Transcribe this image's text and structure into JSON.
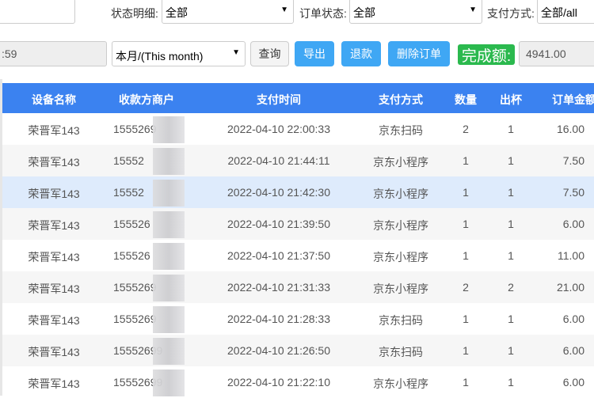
{
  "filters": {
    "status_detail_label": "状态明细:",
    "status_detail_value": "全部",
    "order_status_label": "订单状态:",
    "order_status_value": "全部",
    "pay_method_label": "支付方式:",
    "pay_method_value": "全部/all",
    "end_time_value": ":59",
    "period_value": "本月/(This month)"
  },
  "toolbar": {
    "query": "查询",
    "export": "导出",
    "refund": "退款",
    "delete_order": "删除订单",
    "completed_label": "完成额:",
    "completed_value": "4941.00"
  },
  "table": {
    "headers": [
      "设备名称",
      "收款方商户",
      "支付时间",
      "支付方式",
      "数量",
      "出杯",
      "订单金额"
    ],
    "rows": [
      {
        "device": "荣晋军143",
        "merchant": "1555269",
        "time": "2022-04-10 22:00:33",
        "method": "京东扫码",
        "qty": "2",
        "cups": "1",
        "amount": "16.00"
      },
      {
        "device": "荣晋军143",
        "merchant": "15552",
        "time": "2022-04-10 21:44:11",
        "method": "京东小程序",
        "qty": "1",
        "cups": "1",
        "amount": "7.50"
      },
      {
        "device": "荣晋军143",
        "merchant": "15552",
        "time": "2022-04-10 21:42:30",
        "method": "京东小程序",
        "qty": "1",
        "cups": "1",
        "amount": "7.50"
      },
      {
        "device": "荣晋军143",
        "merchant": "155526",
        "time": "2022-04-10 21:39:50",
        "method": "京东小程序",
        "qty": "1",
        "cups": "1",
        "amount": "6.00"
      },
      {
        "device": "荣晋军143",
        "merchant": "155526",
        "time": "2022-04-10 21:37:50",
        "method": "京东小程序",
        "qty": "1",
        "cups": "1",
        "amount": "11.00"
      },
      {
        "device": "荣晋军143",
        "merchant": "1555269",
        "time": "2022-04-10 21:31:33",
        "method": "京东小程序",
        "qty": "2",
        "cups": "2",
        "amount": "21.00"
      },
      {
        "device": "荣晋军143",
        "merchant": "1555269",
        "time": "2022-04-10 21:28:33",
        "method": "京东扫码",
        "qty": "1",
        "cups": "1",
        "amount": "6.00"
      },
      {
        "device": "荣晋军143",
        "merchant": "15552699",
        "time": "2022-04-10 21:26:50",
        "method": "京东扫码",
        "qty": "1",
        "cups": "1",
        "amount": "6.00"
      },
      {
        "device": "荣晋军143",
        "merchant": "15552699",
        "time": "2022-04-10 21:22:10",
        "method": "京东小程序",
        "qty": "1",
        "cups": "1",
        "amount": "6.00"
      }
    ],
    "highlighted_row": 2
  },
  "colors": {
    "header": "#3b82f0",
    "button": "#3fa7f4",
    "completed": "#2bb94e",
    "highlight": "#deebfc"
  }
}
